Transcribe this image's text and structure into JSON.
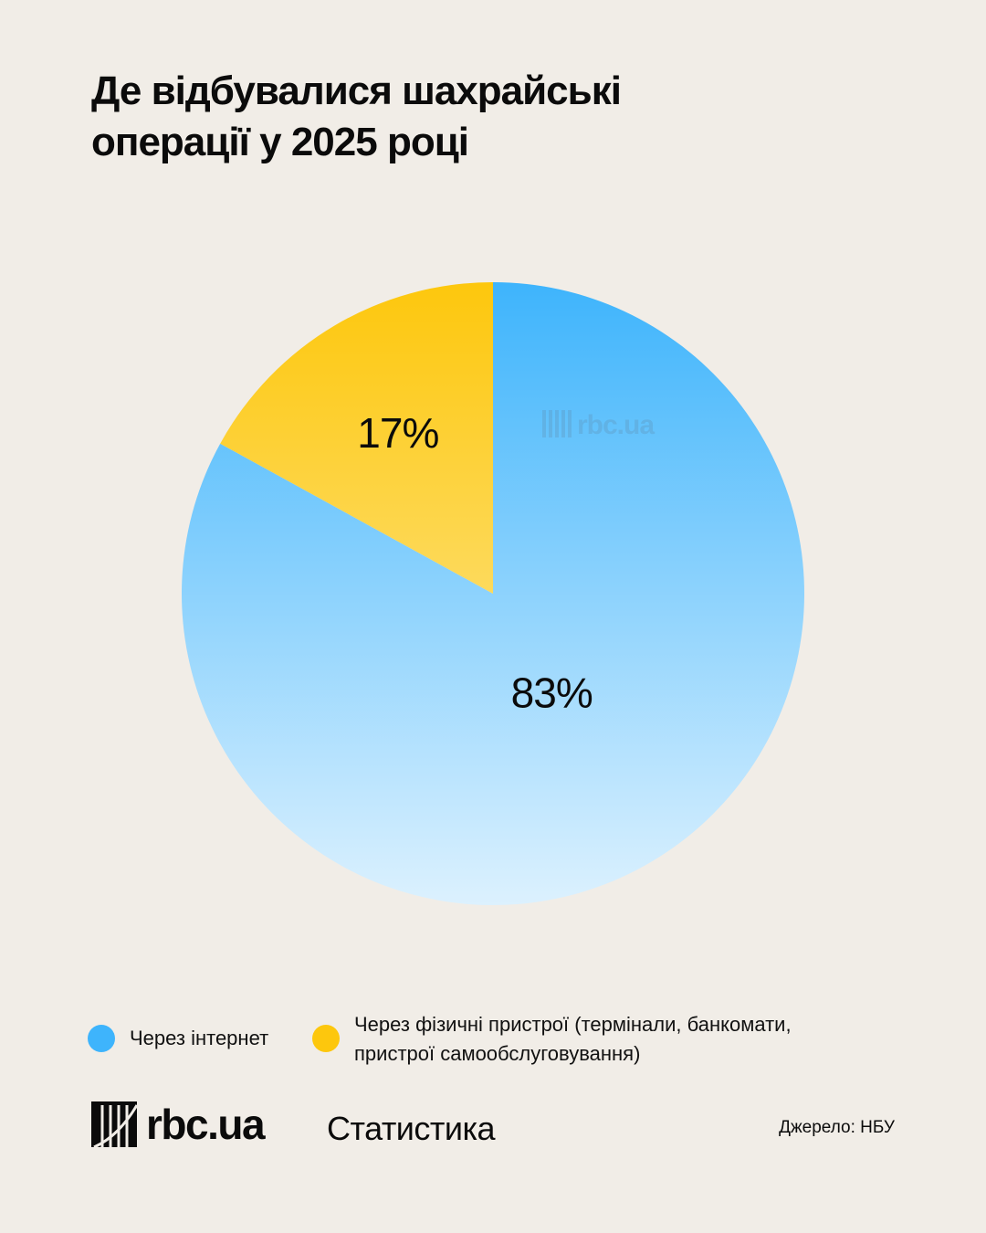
{
  "title_lines": [
    "Де відбувалися шахрайські",
    "операції у 2025 році"
  ],
  "chart_data": {
    "type": "pie",
    "title": "Де відбувалися шахрайські операції у 2025 році",
    "slices": [
      {
        "label": "Через інтернет",
        "value": 83,
        "display": "83%",
        "color": "#3eb4fc"
      },
      {
        "label": "Через фізичні пристрої (термінали, банкомати, пристрої самообслуговування)",
        "value": 17,
        "display": "17%",
        "color": "#fdc70d"
      }
    ],
    "legend_position": "bottom"
  },
  "legend": {
    "items": [
      {
        "lines": [
          "Через інтернет"
        ],
        "color": "#3eb4fc"
      },
      {
        "lines": [
          "Через фізичні пристрої (термінали, банкомати,",
          "пристрої самообслуговування)"
        ],
        "color": "#fdc70d"
      }
    ]
  },
  "watermark": "rbc.ua",
  "footer": {
    "logo_text": "rbc.ua",
    "section": "Статистика",
    "source": "Джерело: НБУ"
  }
}
